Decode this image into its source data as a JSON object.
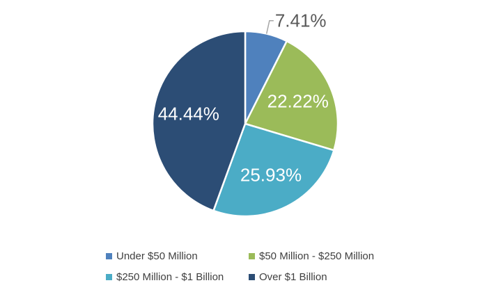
{
  "chart_data": {
    "type": "pie",
    "categories": [
      "Under $50 Million",
      "$50 Million - $250 Million",
      "$250 Million - $1 Billion",
      "Over $1 Billion"
    ],
    "values": [
      7.41,
      22.22,
      25.93,
      44.44
    ],
    "labels": [
      "7.41%",
      "22.22%",
      "25.93%",
      "44.44%"
    ],
    "colors": [
      "#4f81bd",
      "#9bbb59",
      "#4bacc6",
      "#2c4d75"
    ],
    "legend_position": "bottom"
  }
}
